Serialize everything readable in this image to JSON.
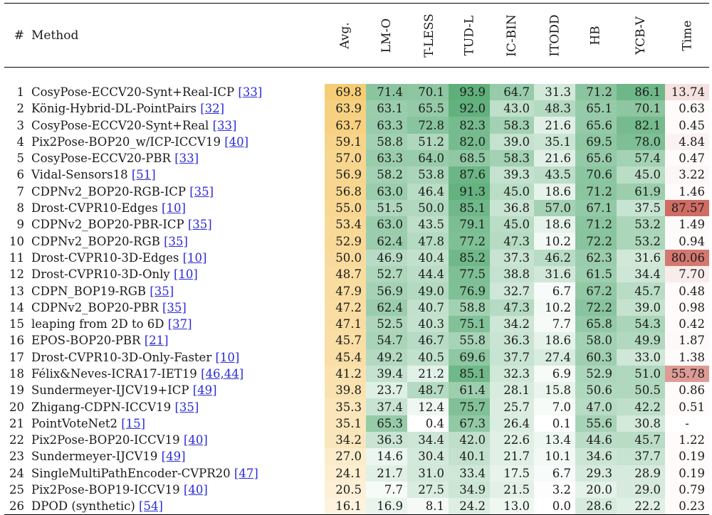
{
  "headers": {
    "index": "#",
    "method": "Method",
    "avg": "Avg.",
    "lmo": "LM-O",
    "tless": "T-LESS",
    "tudl": "TUD-L",
    "icbin": "IC-BIN",
    "itodd": "ITODD",
    "hb": "HB",
    "ycbv": "YCB-V",
    "time": "Time"
  },
  "rows": [
    {
      "idx": "1",
      "method": "CosyPose-ECCV20-Synt+Real-ICP",
      "ref": "[33]",
      "avg": "69.8",
      "lmo": "71.4",
      "tless": "70.1",
      "tudl": "93.9",
      "icbin": "64.7",
      "itodd": "31.3",
      "hb": "71.2",
      "ycbv": "86.1",
      "time": "13.74"
    },
    {
      "idx": "2",
      "method": "König-Hybrid-DL-PointPairs",
      "ref": "[32]",
      "avg": "63.9",
      "lmo": "63.1",
      "tless": "65.5",
      "tudl": "92.0",
      "icbin": "43.0",
      "itodd": "48.3",
      "hb": "65.1",
      "ycbv": "70.1",
      "time": "0.63"
    },
    {
      "idx": "3",
      "method": "CosyPose-ECCV20-Synt+Real",
      "ref": "[33]",
      "avg": "63.7",
      "lmo": "63.3",
      "tless": "72.8",
      "tudl": "82.3",
      "icbin": "58.3",
      "itodd": "21.6",
      "hb": "65.6",
      "ycbv": "82.1",
      "time": "0.45"
    },
    {
      "idx": "4",
      "method": "Pix2Pose-BOP20_w/ICP-ICCV19",
      "ref": "[40]",
      "avg": "59.1",
      "lmo": "58.8",
      "tless": "51.2",
      "tudl": "82.0",
      "icbin": "39.0",
      "itodd": "35.1",
      "hb": "69.5",
      "ycbv": "78.0",
      "time": "4.84"
    },
    {
      "idx": "5",
      "method": "CosyPose-ECCV20-PBR",
      "ref": "[33]",
      "avg": "57.0",
      "lmo": "63.3",
      "tless": "64.0",
      "tudl": "68.5",
      "icbin": "58.3",
      "itodd": "21.6",
      "hb": "65.6",
      "ycbv": "57.4",
      "time": "0.47"
    },
    {
      "idx": "6",
      "method": "Vidal-Sensors18",
      "ref": "[51]",
      "avg": "56.9",
      "lmo": "58.2",
      "tless": "53.8",
      "tudl": "87.6",
      "icbin": "39.3",
      "itodd": "43.5",
      "hb": "70.6",
      "ycbv": "45.0",
      "time": "3.22"
    },
    {
      "idx": "7",
      "method": "CDPNv2_BOP20-RGB-ICP",
      "ref": "[35]",
      "avg": "56.8",
      "lmo": "63.0",
      "tless": "46.4",
      "tudl": "91.3",
      "icbin": "45.0",
      "itodd": "18.6",
      "hb": "71.2",
      "ycbv": "61.9",
      "time": "1.46"
    },
    {
      "idx": "8",
      "method": "Drost-CVPR10-Edges",
      "ref": "[10]",
      "avg": "55.0",
      "lmo": "51.5",
      "tless": "50.0",
      "tudl": "85.1",
      "icbin": "36.8",
      "itodd": "57.0",
      "hb": "67.1",
      "ycbv": "37.5",
      "time": "87.57"
    },
    {
      "idx": "9",
      "method": "CDPNv2_BOP20-PBR-ICP",
      "ref": "[35]",
      "avg": "53.4",
      "lmo": "63.0",
      "tless": "43.5",
      "tudl": "79.1",
      "icbin": "45.0",
      "itodd": "18.6",
      "hb": "71.2",
      "ycbv": "53.2",
      "time": "1.49"
    },
    {
      "idx": "10",
      "method": "CDPNv2_BOP20-RGB",
      "ref": "[35]",
      "avg": "52.9",
      "lmo": "62.4",
      "tless": "47.8",
      "tudl": "77.2",
      "icbin": "47.3",
      "itodd": "10.2",
      "hb": "72.2",
      "ycbv": "53.2",
      "time": "0.94"
    },
    {
      "idx": "11",
      "method": "Drost-CVPR10-3D-Edges",
      "ref": "[10]",
      "avg": "50.0",
      "lmo": "46.9",
      "tless": "40.4",
      "tudl": "85.2",
      "icbin": "37.3",
      "itodd": "46.2",
      "hb": "62.3",
      "ycbv": "31.6",
      "time": "80.06"
    },
    {
      "idx": "12",
      "method": "Drost-CVPR10-3D-Only",
      "ref": "[10]",
      "avg": "48.7",
      "lmo": "52.7",
      "tless": "44.4",
      "tudl": "77.5",
      "icbin": "38.8",
      "itodd": "31.6",
      "hb": "61.5",
      "ycbv": "34.4",
      "time": "7.70"
    },
    {
      "idx": "13",
      "method": "CDPN_BOP19-RGB",
      "ref": "[35]",
      "avg": "47.9",
      "lmo": "56.9",
      "tless": "49.0",
      "tudl": "76.9",
      "icbin": "32.7",
      "itodd": "6.7",
      "hb": "67.2",
      "ycbv": "45.7",
      "time": "0.48"
    },
    {
      "idx": "14",
      "method": "CDPNv2_BOP20-PBR",
      "ref": "[35]",
      "avg": "47.2",
      "lmo": "62.4",
      "tless": "40.7",
      "tudl": "58.8",
      "icbin": "47.3",
      "itodd": "10.2",
      "hb": "72.2",
      "ycbv": "39.0",
      "time": "0.98"
    },
    {
      "idx": "15",
      "method": "leaping from 2D to 6D",
      "ref": "[37]",
      "avg": "47.1",
      "lmo": "52.5",
      "tless": "40.3",
      "tudl": "75.1",
      "icbin": "34.2",
      "itodd": "7.7",
      "hb": "65.8",
      "ycbv": "54.3",
      "time": "0.42"
    },
    {
      "idx": "16",
      "method": "EPOS-BOP20-PBR",
      "ref": "[21]",
      "avg": "45.7",
      "lmo": "54.7",
      "tless": "46.7",
      "tudl": "55.8",
      "icbin": "36.3",
      "itodd": "18.6",
      "hb": "58.0",
      "ycbv": "49.9",
      "time": "1.87"
    },
    {
      "idx": "17",
      "method": "Drost-CVPR10-3D-Only-Faster",
      "ref": "[10]",
      "avg": "45.4",
      "lmo": "49.2",
      "tless": "40.5",
      "tudl": "69.6",
      "icbin": "37.7",
      "itodd": "27.4",
      "hb": "60.3",
      "ycbv": "33.0",
      "time": "1.38"
    },
    {
      "idx": "18",
      "method": "Félix&Neves-ICRA17-IET19",
      "ref": "[46,44]",
      "avg": "41.2",
      "lmo": "39.4",
      "tless": "21.2",
      "tudl": "85.1",
      "icbin": "32.3",
      "itodd": "6.9",
      "hb": "52.9",
      "ycbv": "51.0",
      "time": "55.78"
    },
    {
      "idx": "19",
      "method": "Sundermeyer-IJCV19+ICP",
      "ref": "[49]",
      "avg": "39.8",
      "lmo": "23.7",
      "tless": "48.7",
      "tudl": "61.4",
      "icbin": "28.1",
      "itodd": "15.8",
      "hb": "50.6",
      "ycbv": "50.5",
      "time": "0.86"
    },
    {
      "idx": "20",
      "method": "Zhigang-CDPN-ICCV19",
      "ref": "[35]",
      "avg": "35.3",
      "lmo": "37.4",
      "tless": "12.4",
      "tudl": "75.7",
      "icbin": "25.7",
      "itodd": "7.0",
      "hb": "47.0",
      "ycbv": "42.2",
      "time": "0.51"
    },
    {
      "idx": "21",
      "method": "PointVoteNet2",
      "ref": "[15]",
      "avg": "35.1",
      "lmo": "65.3",
      "tless": "0.4",
      "tudl": "67.3",
      "icbin": "26.4",
      "itodd": "0.1",
      "hb": "55.6",
      "ycbv": "30.8",
      "time": "-"
    },
    {
      "idx": "22",
      "method": "Pix2Pose-BOP20-ICCV19",
      "ref": "[40]",
      "avg": "34.2",
      "lmo": "36.3",
      "tless": "34.4",
      "tudl": "42.0",
      "icbin": "22.6",
      "itodd": "13.4",
      "hb": "44.6",
      "ycbv": "45.7",
      "time": "1.22"
    },
    {
      "idx": "23",
      "method": "Sundermeyer-IJCV19",
      "ref": "[49]",
      "avg": "27.0",
      "lmo": "14.6",
      "tless": "30.4",
      "tudl": "40.1",
      "icbin": "21.7",
      "itodd": "10.1",
      "hb": "34.6",
      "ycbv": "37.7",
      "time": "0.19"
    },
    {
      "idx": "24",
      "method": "SingleMultiPathEncoder-CVPR20",
      "ref": "[47]",
      "avg": "24.1",
      "lmo": "21.7",
      "tless": "31.0",
      "tudl": "33.4",
      "icbin": "17.5",
      "itodd": "6.7",
      "hb": "29.3",
      "ycbv": "28.9",
      "time": "0.19"
    },
    {
      "idx": "25",
      "method": "Pix2Pose-BOP19-ICCV19",
      "ref": "[40]",
      "avg": "20.5",
      "lmo": "7.7",
      "tless": "27.5",
      "tudl": "34.9",
      "icbin": "21.5",
      "itodd": "3.2",
      "hb": "20.0",
      "ycbv": "29.0",
      "time": "0.79"
    },
    {
      "idx": "26",
      "method": "DPOD (synthetic)",
      "ref": "[54]",
      "avg": "16.1",
      "lmo": "16.9",
      "tless": "8.1",
      "tudl": "24.2",
      "icbin": "13.0",
      "itodd": "0.0",
      "hb": "28.6",
      "ycbv": "22.2",
      "time": "0.23"
    }
  ],
  "colors": {
    "avg_scale": "#f5c96b",
    "score_scale": "#4aa56a",
    "time_scale": "#cf6d65",
    "link": "#2b2bd6"
  }
}
